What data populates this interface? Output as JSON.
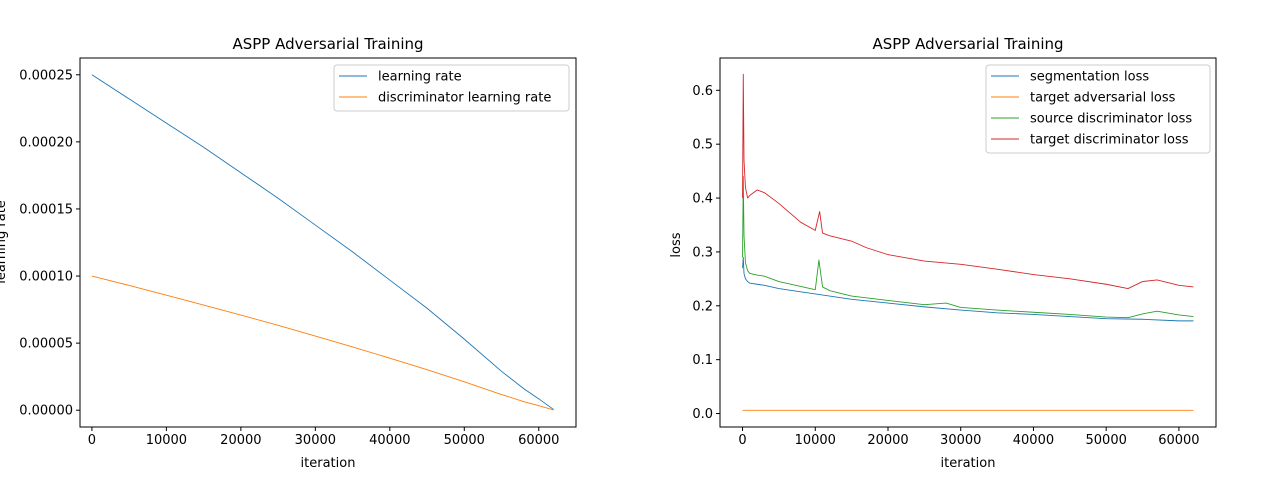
{
  "chart_data": [
    {
      "type": "line",
      "title": "ASPP Adversarial Training",
      "xlabel": "iteration",
      "ylabel": "learning rate",
      "xlim": [
        -1600,
        65000
      ],
      "ylim": [
        -1.25e-05,
        0.0002625
      ],
      "xticks": [
        0,
        10000,
        20000,
        30000,
        40000,
        50000,
        60000
      ],
      "xtick_labels": [
        "0",
        "10000",
        "20000",
        "30000",
        "40000",
        "50000",
        "60000"
      ],
      "yticks": [
        0,
        5e-05,
        0.0001,
        0.00015,
        0.0002,
        0.00025
      ],
      "ytick_labels": [
        "0.00000",
        "0.00005",
        "0.00010",
        "0.00015",
        "0.00020",
        "0.00025"
      ],
      "grid": false,
      "legend_position": "top-right",
      "series": [
        {
          "name": "learning rate",
          "color": "#1f77b4",
          "x": [
            0,
            5000,
            10000,
            15000,
            20000,
            25000,
            30000,
            35000,
            40000,
            45000,
            50000,
            55000,
            58000,
            60000,
            61000,
            62000
          ],
          "y": [
            0.00025,
            0.000232,
            0.000214,
            0.000196,
            0.000177,
            0.000158,
            0.000138,
            0.000118,
            9.7e-05,
            7.6e-05,
            5.3e-05,
            2.9e-05,
            1.6e-05,
            8.5e-06,
            4.5e-06,
            5e-07
          ]
        },
        {
          "name": "discriminator learning rate",
          "color": "#ff7f0e",
          "x": [
            0,
            5000,
            10000,
            15000,
            20000,
            25000,
            30000,
            35000,
            40000,
            45000,
            50000,
            55000,
            58000,
            60000,
            61000,
            62000
          ],
          "y": [
            0.0001,
            9.3e-05,
            8.57e-05,
            7.84e-05,
            7.09e-05,
            6.33e-05,
            5.53e-05,
            4.72e-05,
            3.88e-05,
            3.02e-05,
            2.12e-05,
            1.17e-05,
            6.4e-06,
            3.4e-06,
            1.8e-06,
            2e-07
          ]
        }
      ]
    },
    {
      "type": "line",
      "title": "ASPP Adversarial Training",
      "xlabel": "iteration",
      "ylabel": "loss",
      "xlim": [
        -3100,
        65100
      ],
      "ylim": [
        -0.025,
        0.66
      ],
      "xticks": [
        0,
        10000,
        20000,
        30000,
        40000,
        50000,
        60000
      ],
      "xtick_labels": [
        "0",
        "10000",
        "20000",
        "30000",
        "40000",
        "50000",
        "60000"
      ],
      "yticks": [
        0,
        0.1,
        0.2,
        0.3,
        0.4,
        0.5,
        0.6
      ],
      "ytick_labels": [
        "0.0",
        "0.1",
        "0.2",
        "0.3",
        "0.4",
        "0.5",
        "0.6"
      ],
      "grid": false,
      "legend_position": "top-right",
      "series": [
        {
          "name": "segmentation loss",
          "color": "#1f77b4",
          "x": [
            0,
            100,
            200,
            400,
            700,
            1000,
            2000,
            3000,
            5000,
            8000,
            10000,
            15000,
            20000,
            25000,
            30000,
            35000,
            40000,
            45000,
            50000,
            55000,
            60000,
            62000
          ],
          "y": [
            0.27,
            0.29,
            0.26,
            0.25,
            0.245,
            0.242,
            0.24,
            0.238,
            0.232,
            0.226,
            0.222,
            0.212,
            0.205,
            0.198,
            0.192,
            0.187,
            0.184,
            0.18,
            0.176,
            0.175,
            0.172,
            0.172
          ]
        },
        {
          "name": "target adversarial loss",
          "color": "#ff7f0e",
          "x": [
            0,
            10000,
            20000,
            30000,
            40000,
            50000,
            60000,
            62000
          ],
          "y": [
            0.006,
            0.006,
            0.006,
            0.006,
            0.006,
            0.006,
            0.006,
            0.006
          ]
        },
        {
          "name": "source discriminator loss",
          "color": "#2ca02c",
          "x": [
            0,
            100,
            200,
            400,
            700,
            1000,
            2000,
            3000,
            5000,
            8000,
            10000,
            10500,
            11000,
            12000,
            15000,
            20000,
            25000,
            28000,
            30000,
            35000,
            40000,
            45000,
            50000,
            53000,
            55000,
            57000,
            60000,
            62000
          ],
          "y": [
            0.29,
            0.44,
            0.33,
            0.28,
            0.265,
            0.26,
            0.257,
            0.255,
            0.245,
            0.236,
            0.23,
            0.285,
            0.235,
            0.228,
            0.218,
            0.21,
            0.202,
            0.205,
            0.197,
            0.192,
            0.188,
            0.184,
            0.179,
            0.178,
            0.185,
            0.19,
            0.183,
            0.18
          ]
        },
        {
          "name": "target discriminator loss",
          "color": "#d62728",
          "x": [
            0,
            100,
            200,
            400,
            700,
            1000,
            2000,
            3000,
            5000,
            8000,
            10000,
            10600,
            11000,
            12000,
            15000,
            17000,
            20000,
            25000,
            30000,
            35000,
            40000,
            45000,
            50000,
            53000,
            55000,
            57000,
            60000,
            62000
          ],
          "y": [
            0.4,
            0.63,
            0.47,
            0.42,
            0.4,
            0.405,
            0.415,
            0.41,
            0.39,
            0.355,
            0.34,
            0.375,
            0.335,
            0.33,
            0.32,
            0.308,
            0.295,
            0.283,
            0.277,
            0.268,
            0.258,
            0.25,
            0.24,
            0.232,
            0.245,
            0.248,
            0.238,
            0.235
          ]
        }
      ]
    }
  ]
}
